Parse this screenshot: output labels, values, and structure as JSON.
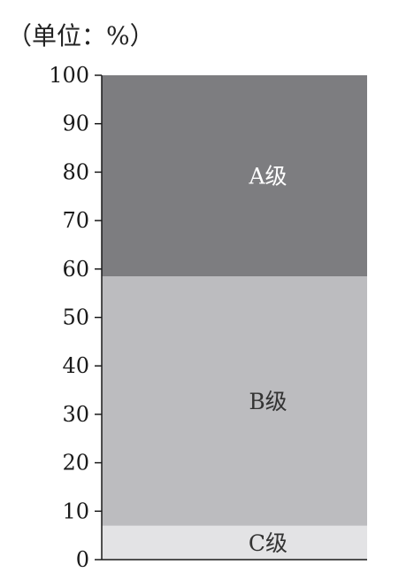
{
  "chart_data": {
    "type": "bar",
    "subtype": "stacked-100-percent",
    "unit_label": "（单位：%）",
    "ylim": [
      0,
      100
    ],
    "y_ticks": [
      0,
      10,
      20,
      30,
      40,
      50,
      60,
      70,
      80,
      90,
      100
    ],
    "grid": false,
    "legend": "none",
    "series": [
      {
        "name": "C级",
        "value": 7,
        "color": "#e3e3e5",
        "label_color": "#333333"
      },
      {
        "name": "B级",
        "value": 51.5,
        "color": "#bcbcbf",
        "label_color": "#333333"
      },
      {
        "name": "A级",
        "value": 41.5,
        "color": "#7d7d80",
        "label_color": "#ffffff"
      }
    ]
  }
}
